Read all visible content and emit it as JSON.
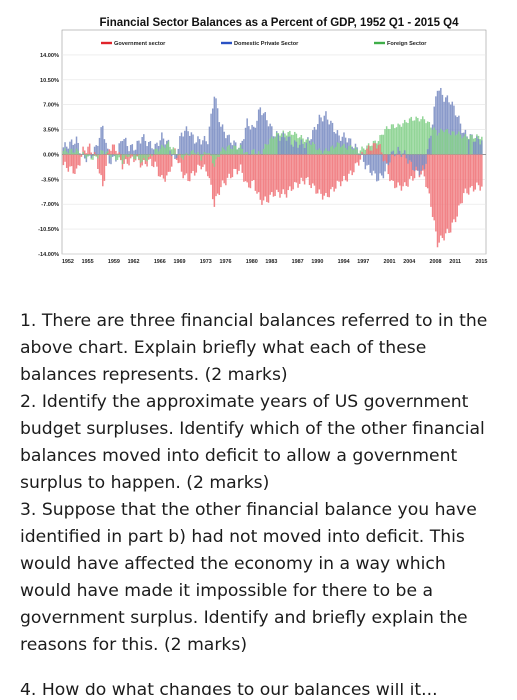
{
  "chart_data": {
    "type": "bar",
    "title": "Financial Sector Balances as a Percent of GDP, 1952 Q1 - 2015 Q4",
    "ylim": [
      -14,
      17.5
    ],
    "yticks": [
      "14.00%",
      "10.50%",
      "7.00%",
      "3.50%",
      "0.00%",
      "-3.50%",
      "-7.00%",
      "-10.50%",
      "-14.00%"
    ],
    "ytick_values": [
      14,
      10.5,
      7,
      3.5,
      0,
      -3.5,
      -7,
      -10.5,
      -14
    ],
    "xticks": [
      "1952",
      "1955",
      "1959",
      "1962",
      "1966",
      "1969",
      "1973",
      "1976",
      "1980",
      "1983",
      "1987",
      "1990",
      "1994",
      "1997",
      "2001",
      "2004",
      "2008",
      "2011",
      "2015"
    ],
    "xtick_values": [
      1952,
      1955,
      1959,
      1962,
      1966,
      1969,
      1973,
      1976,
      1980,
      1983,
      1987,
      1990,
      1994,
      1997,
      2001,
      2004,
      2008,
      2011,
      2015
    ],
    "grid": true,
    "legend_position": "top",
    "colors": {
      "government": "#f0767a",
      "private": "#7d8fc4",
      "foreign": "#86d08c",
      "government_legend": "#e0242b",
      "private_legend": "#2a51c4",
      "foreign_legend": "#3fae49"
    },
    "x": [
      1952,
      1953,
      1954,
      1955,
      1956,
      1957,
      1958,
      1959,
      1960,
      1961,
      1962,
      1963,
      1964,
      1965,
      1966,
      1967,
      1968,
      1969,
      1970,
      1971,
      1972,
      1973,
      1974,
      1975,
      1976,
      1977,
      1978,
      1979,
      1980,
      1981,
      1982,
      1983,
      1984,
      1985,
      1986,
      1987,
      1988,
      1989,
      1990,
      1991,
      1992,
      1993,
      1994,
      1995,
      1996,
      1997,
      1998,
      1999,
      2000,
      2001,
      2002,
      2003,
      2004,
      2005,
      2006,
      2007,
      2008,
      2009,
      2010,
      2011,
      2012,
      2013,
      2014,
      2015
    ],
    "series": [
      {
        "name": "Government sector",
        "values": [
          -1.5,
          -2.0,
          -2.5,
          0.5,
          1.0,
          -0.5,
          -4.5,
          1.0,
          1.0,
          -1.5,
          -1.0,
          -0.5,
          -1.5,
          -1.0,
          -1.5,
          -3.5,
          -3.0,
          0.5,
          -2.5,
          -3.5,
          -2.5,
          -1.5,
          -2.5,
          -7.0,
          -4.5,
          -3.5,
          -2.5,
          -2.0,
          -4.5,
          -4.0,
          -6.5,
          -6.5,
          -5.5,
          -5.5,
          -5.5,
          -4.5,
          -4.0,
          -3.5,
          -4.5,
          -5.5,
          -6.0,
          -5.0,
          -4.0,
          -3.5,
          -2.5,
          -1.0,
          0.5,
          1.0,
          1.5,
          -1.0,
          -4.0,
          -4.5,
          -4.5,
          -3.5,
          -2.5,
          -3.0,
          -7.0,
          -12.5,
          -11.5,
          -10.5,
          -8.5,
          -5.5,
          -5.0,
          -4.5
        ]
      },
      {
        "name": "Domestic Private Sector",
        "values": [
          1.0,
          1.5,
          2.0,
          -0.5,
          -0.5,
          1.0,
          4.0,
          -1.0,
          -0.5,
          2.5,
          1.0,
          1.0,
          2.5,
          1.5,
          1.0,
          2.5,
          1.5,
          -1.0,
          3.0,
          3.5,
          2.0,
          2.0,
          2.0,
          8.5,
          4.0,
          2.5,
          1.5,
          1.0,
          4.5,
          3.5,
          6.5,
          5.0,
          3.0,
          2.5,
          2.5,
          1.5,
          1.5,
          1.5,
          3.0,
          5.0,
          5.5,
          4.0,
          2.5,
          2.5,
          1.5,
          0.5,
          -1.5,
          -2.5,
          -3.5,
          -2.5,
          0.0,
          0.5,
          0.0,
          -1.5,
          -2.5,
          -2.0,
          3.0,
          9.5,
          8.0,
          7.5,
          5.5,
          3.0,
          2.5,
          2.0
        ]
      },
      {
        "name": "Foreign Sector",
        "values": [
          0.5,
          0.5,
          0.5,
          0.0,
          -0.5,
          -0.5,
          0.5,
          0.0,
          -0.5,
          -1.0,
          0.0,
          -0.5,
          -1.0,
          -0.5,
          0.5,
          1.0,
          1.5,
          0.5,
          -0.5,
          0.0,
          0.5,
          -0.5,
          0.5,
          -1.5,
          0.5,
          1.0,
          1.0,
          1.0,
          0.0,
          0.5,
          0.0,
          1.5,
          2.5,
          3.0,
          3.0,
          3.0,
          2.5,
          2.0,
          1.5,
          0.5,
          0.5,
          1.0,
          1.5,
          1.0,
          1.0,
          0.5,
          1.0,
          1.5,
          2.0,
          3.5,
          4.0,
          4.0,
          4.5,
          5.0,
          5.0,
          5.0,
          4.0,
          3.0,
          3.5,
          3.0,
          3.0,
          2.5,
          2.5,
          2.5
        ]
      }
    ]
  },
  "questions": [
    "1. There are three financial balances referred to in the above chart. Explain briefly what each of these balances represents. (2 marks)",
    "2. Identify the approximate years of US government budget surpluses. Identify which of the other financial balances moved into deficit to allow a government surplus to happen. (2 marks)",
    "3. Suppose that the other financial balance you have identified in part b) had not moved into deficit. This would have affected the economy in a way which would have made it impossible for there to be a government surplus. Identify and briefly explain the reasons for this. (2 marks)"
  ],
  "cutoff_text": "4. How do what changes to our balances will it..."
}
